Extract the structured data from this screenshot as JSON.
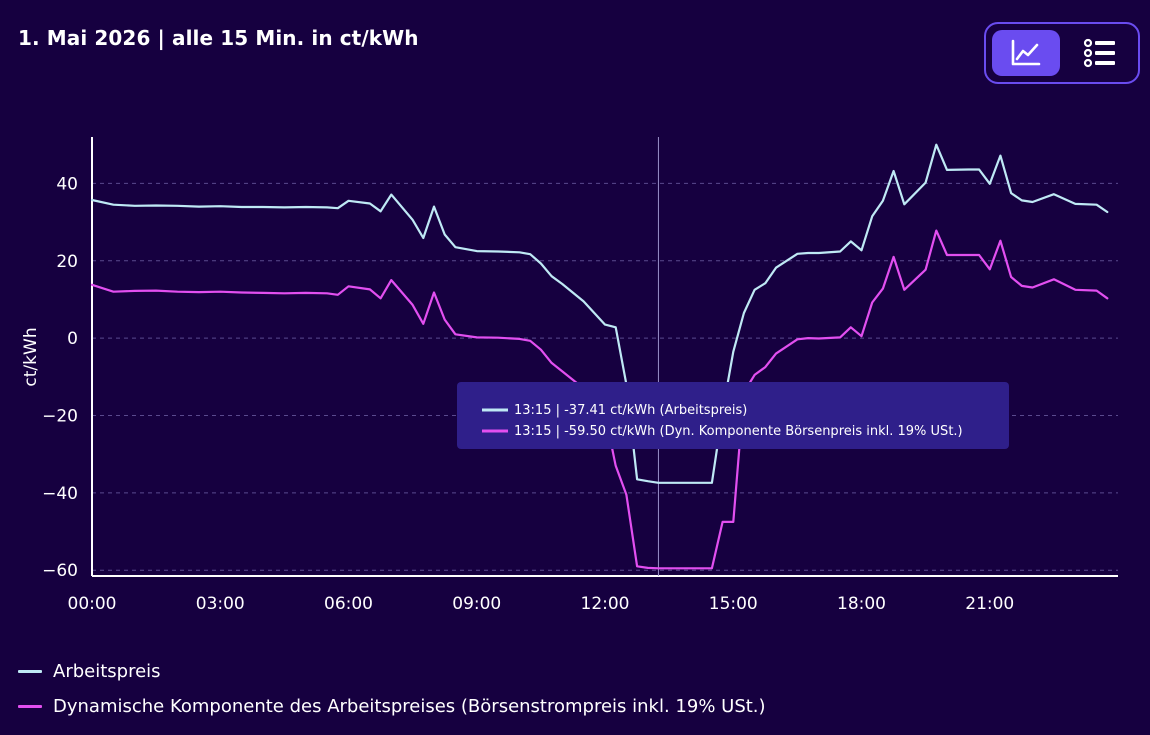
{
  "header": {
    "title": "1. Mai 2026 | alle 15 Min. in ct/kWh"
  },
  "view_toggle": {
    "active": "chart",
    "chart_icon": "line-chart-icon",
    "list_icon": "list-icon"
  },
  "colors": {
    "background": "#160040",
    "accent": "#6a4cf0",
    "arbeitspreis": "#bfe9f5",
    "dynamisch": "#e24ff0",
    "tooltip_bg": "#2f1f8a",
    "grid": "#5a4a8e"
  },
  "tooltip": {
    "line1": "13:15 | -37.41 ct/kWh (Arbeitspreis)",
    "line2": "13:15 | -59.50 ct/kWh (Dyn. Komponente Börsenpreis inkl. 19% USt.)",
    "crosshair_hour": 13.25
  },
  "legend": [
    {
      "label": "Arbeitspreis"
    },
    {
      "label": "Dynamische Komponente des Arbeitspreises (Börsenstrompreis inkl. 19% USt.)"
    }
  ],
  "chart_data": {
    "type": "line",
    "ylabel": "ct/kWh",
    "xlabel": "",
    "x_ticks": [
      "00:00",
      "03:00",
      "06:00",
      "09:00",
      "12:00",
      "15:00",
      "18:00",
      "21:00"
    ],
    "y_ticks": [
      "40",
      "20",
      "0",
      "−20",
      "−40",
      "−60"
    ],
    "ylim": [
      -61.5,
      52
    ],
    "xlim": [
      0,
      24
    ],
    "grid": "horizontal dashed",
    "legend_position": "bottom",
    "series": [
      {
        "name": "Arbeitspreis",
        "x": [
          0,
          0.5,
          1,
          1.5,
          2,
          2.5,
          3,
          3.5,
          4,
          4.5,
          5,
          5.5,
          5.75,
          6,
          6.5,
          6.75,
          7,
          7.5,
          7.75,
          8,
          8.25,
          8.5,
          9,
          9.5,
          10,
          10.25,
          10.5,
          10.75,
          11,
          11.5,
          12,
          12.25,
          12.5,
          12.75,
          13,
          13.25,
          13.5,
          14,
          14.25,
          14.5,
          14.75,
          15,
          15.25,
          15.5,
          15.75,
          16,
          16.5,
          16.75,
          17,
          17.5,
          17.75,
          18,
          18.25,
          18.5,
          18.75,
          19,
          19.5,
          19.75,
          20,
          20.5,
          20.75,
          21,
          21.25,
          21.5,
          21.75,
          22,
          22.5,
          23,
          23.5,
          23.75
        ],
        "values": [
          35.7,
          34.5,
          34.2,
          34.3,
          34.2,
          34.0,
          34.1,
          33.9,
          33.9,
          33.8,
          33.9,
          33.8,
          33.6,
          35.5,
          34.8,
          32.8,
          37.1,
          30.6,
          25.9,
          34.0,
          26.8,
          23.5,
          22.5,
          22.4,
          22.2,
          21.7,
          19.3,
          16.0,
          14.0,
          9.5,
          3.5,
          2.8,
          -12.0,
          -36.5,
          -37.0,
          -37.4,
          -37.4,
          -37.4,
          -37.4,
          -37.4,
          -19.0,
          -3.5,
          6.5,
          12.5,
          14.2,
          18.2,
          21.8,
          22.0,
          22.0,
          22.4,
          25.0,
          22.7,
          31.5,
          35.5,
          43.2,
          34.6,
          40.2,
          50.0,
          43.5,
          43.6,
          43.6,
          39.9,
          47.2,
          37.5,
          35.6,
          35.2,
          37.2,
          34.7,
          34.5,
          32.6
        ]
      },
      {
        "name": "Dynamische Komponente des Arbeitspreises (Börsenstrompreis inkl. 19% USt.)",
        "x": [
          0,
          0.5,
          1,
          1.5,
          2,
          2.5,
          3,
          3.5,
          4,
          4.5,
          5,
          5.5,
          5.75,
          6,
          6.5,
          6.75,
          7,
          7.5,
          7.75,
          8,
          8.25,
          8.5,
          9,
          9.5,
          10,
          10.25,
          10.5,
          10.75,
          11,
          11.5,
          12,
          12.25,
          12.5,
          12.75,
          13,
          13.25,
          13.5,
          14,
          14.25,
          14.5,
          14.75,
          15,
          15.25,
          15.5,
          15.75,
          16,
          16.5,
          16.75,
          17,
          17.5,
          17.75,
          18,
          18.25,
          18.5,
          18.75,
          19,
          19.5,
          19.75,
          20,
          20.5,
          20.75,
          21,
          21.25,
          21.5,
          21.75,
          22,
          22.5,
          23,
          23.5,
          23.75
        ],
        "values": [
          13.8,
          12.0,
          12.2,
          12.3,
          12.0,
          11.9,
          12.0,
          11.8,
          11.7,
          11.6,
          11.7,
          11.6,
          11.2,
          13.4,
          12.6,
          10.3,
          15.0,
          8.6,
          3.7,
          11.8,
          4.8,
          1.0,
          0.2,
          0.1,
          -0.2,
          -0.7,
          -3.0,
          -6.4,
          -8.6,
          -13.0,
          -19.5,
          -33.0,
          -40.5,
          -59.0,
          -59.4,
          -59.5,
          -59.5,
          -59.5,
          -59.5,
          -59.5,
          -47.5,
          -47.5,
          -14.0,
          -9.5,
          -7.5,
          -4.0,
          -0.3,
          0.0,
          -0.1,
          0.2,
          2.8,
          0.5,
          9.2,
          12.8,
          21.0,
          12.5,
          17.7,
          27.8,
          21.5,
          21.5,
          21.5,
          17.8,
          25.2,
          15.8,
          13.5,
          13.1,
          15.2,
          12.5,
          12.3,
          10.3
        ]
      }
    ]
  }
}
